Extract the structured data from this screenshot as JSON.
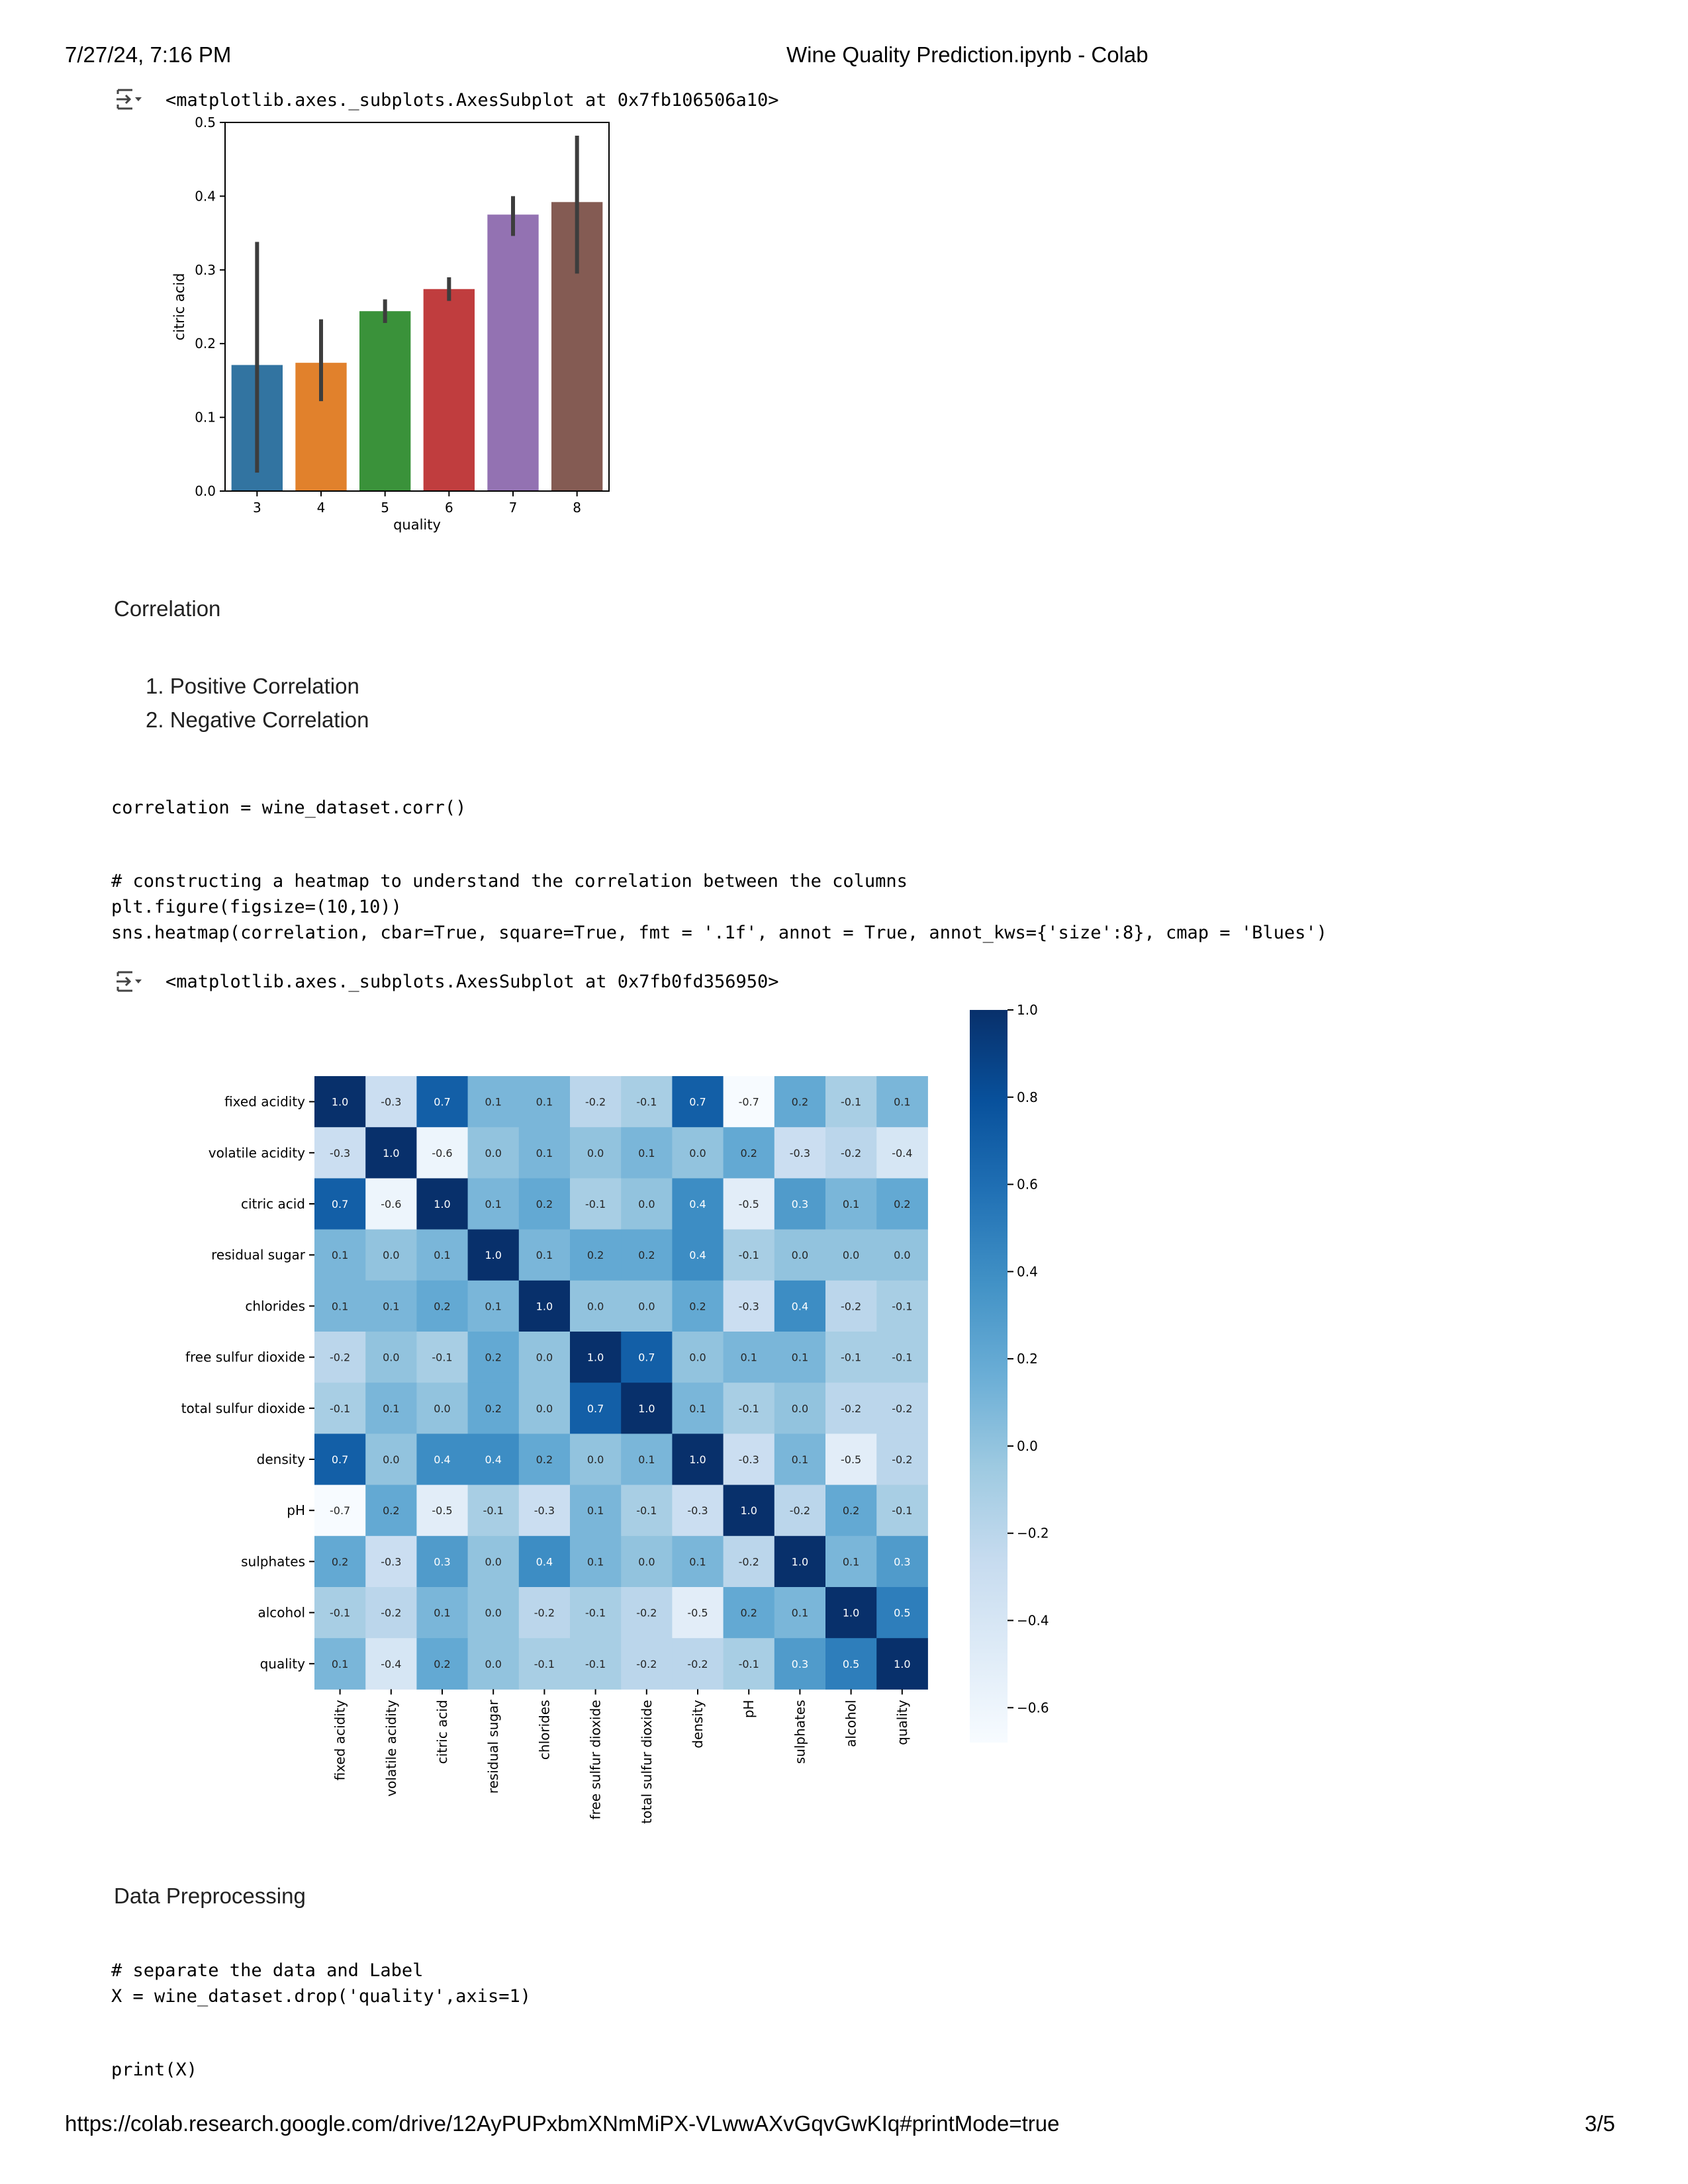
{
  "print_header": {
    "datetime": "7/27/24, 7:16 PM",
    "title": "Wine Quality Prediction.ipynb - Colab"
  },
  "print_footer": {
    "url": "https://colab.research.google.com/drive/12AyPUPxbmXNmMiPX-VLwwAXvGqvGwKIq#printMode=true",
    "page": "3/5"
  },
  "output1": {
    "repr": "<matplotlib.axes._subplots.AxesSubplot at 0x7fb106506a10>"
  },
  "markdown1": {
    "heading": "Correlation",
    "items": [
      "1. Positive Correlation",
      "2. Negative Correlation"
    ]
  },
  "code1": {
    "line": "correlation = wine_dataset.corr()"
  },
  "code2": {
    "lines": [
      "# constructing a heatmap to understand the correlation between the columns",
      "plt.figure(figsize=(10,10))",
      "sns.heatmap(correlation, cbar=True, square=True, fmt = '.1f', annot = True, annot_kws={'size':8}, cmap = 'Blues')"
    ]
  },
  "output2": {
    "repr": "<matplotlib.axes._subplots.AxesSubplot at 0x7fb0fd356950>"
  },
  "markdown2": {
    "heading": "Data Preprocessing"
  },
  "code3": {
    "lines": [
      "# separate the data and Label",
      "X = wine_dataset.drop('quality',axis=1)"
    ]
  },
  "code4": {
    "line": "print(X)"
  },
  "chart_data": [
    {
      "type": "bar",
      "xlabel": "quality",
      "ylabel": "citric acid",
      "categories": [
        "3",
        "4",
        "5",
        "6",
        "7",
        "8"
      ],
      "values": [
        0.171,
        0.174,
        0.244,
        0.274,
        0.375,
        0.392
      ],
      "error_low": [
        0.025,
        0.122,
        0.228,
        0.258,
        0.346,
        0.295
      ],
      "error_high": [
        0.338,
        0.233,
        0.26,
        0.29,
        0.4,
        0.482
      ],
      "colors": [
        "#3274a1",
        "#e1812c",
        "#3a923a",
        "#c03d3e",
        "#9372b2",
        "#845b53"
      ],
      "ylim": [
        0,
        0.5
      ],
      "yticks": [
        "0.0",
        "0.1",
        "0.2",
        "0.3",
        "0.4",
        "0.5"
      ]
    },
    {
      "type": "heatmap",
      "cmap": "Blues",
      "labels": [
        "fixed acidity",
        "volatile acidity",
        "citric acid",
        "residual sugar",
        "chlorides",
        "free sulfur dioxide",
        "total sulfur dioxide",
        "density",
        "pH",
        "sulphates",
        "alcohol",
        "quality"
      ],
      "matrix": [
        [
          1.0,
          -0.3,
          0.7,
          0.1,
          0.1,
          -0.2,
          -0.1,
          0.7,
          -0.7,
          0.2,
          -0.1,
          0.1
        ],
        [
          -0.3,
          1.0,
          -0.6,
          0.0,
          0.1,
          -0.0,
          0.1,
          0.0,
          0.2,
          -0.3,
          -0.2,
          -0.4
        ],
        [
          0.7,
          -0.6,
          1.0,
          0.1,
          0.2,
          -0.1,
          0.0,
          0.4,
          -0.5,
          0.3,
          0.1,
          0.2
        ],
        [
          0.1,
          0.0,
          0.1,
          1.0,
          0.1,
          0.2,
          0.2,
          0.4,
          -0.1,
          0.0,
          0.0,
          0.0
        ],
        [
          0.1,
          0.1,
          0.2,
          0.1,
          1.0,
          0.0,
          0.0,
          0.2,
          -0.3,
          0.4,
          -0.2,
          -0.1
        ],
        [
          -0.2,
          -0.0,
          -0.1,
          0.2,
          0.0,
          1.0,
          0.7,
          -0.0,
          0.1,
          0.1,
          -0.1,
          -0.1
        ],
        [
          -0.1,
          0.1,
          0.0,
          0.2,
          0.0,
          0.7,
          1.0,
          0.1,
          -0.1,
          0.0,
          -0.2,
          -0.2
        ],
        [
          0.7,
          0.0,
          0.4,
          0.4,
          0.2,
          -0.0,
          0.1,
          1.0,
          -0.3,
          0.1,
          -0.5,
          -0.2
        ],
        [
          -0.7,
          0.2,
          -0.5,
          -0.1,
          -0.3,
          0.1,
          -0.1,
          -0.3,
          1.0,
          -0.2,
          0.2,
          -0.1
        ],
        [
          0.2,
          -0.3,
          0.3,
          0.0,
          0.4,
          0.1,
          0.0,
          0.1,
          -0.2,
          1.0,
          0.1,
          0.3
        ],
        [
          -0.1,
          -0.2,
          0.1,
          0.0,
          -0.2,
          -0.1,
          -0.2,
          -0.5,
          0.2,
          0.1,
          1.0,
          0.5
        ],
        [
          0.1,
          -0.4,
          0.2,
          0.0,
          -0.1,
          -0.1,
          -0.2,
          -0.2,
          -0.1,
          0.3,
          0.5,
          1.0
        ]
      ],
      "colorbar": {
        "range": [
          -0.68,
          1.0
        ],
        "ticks": [
          "1.0",
          "0.8",
          "0.6",
          "0.4",
          "0.2",
          "0.0",
          "−0.2",
          "−0.4",
          "−0.6"
        ],
        "tick_values": [
          1.0,
          0.8,
          0.6,
          0.4,
          0.2,
          0.0,
          -0.2,
          -0.4,
          -0.6
        ]
      }
    }
  ]
}
